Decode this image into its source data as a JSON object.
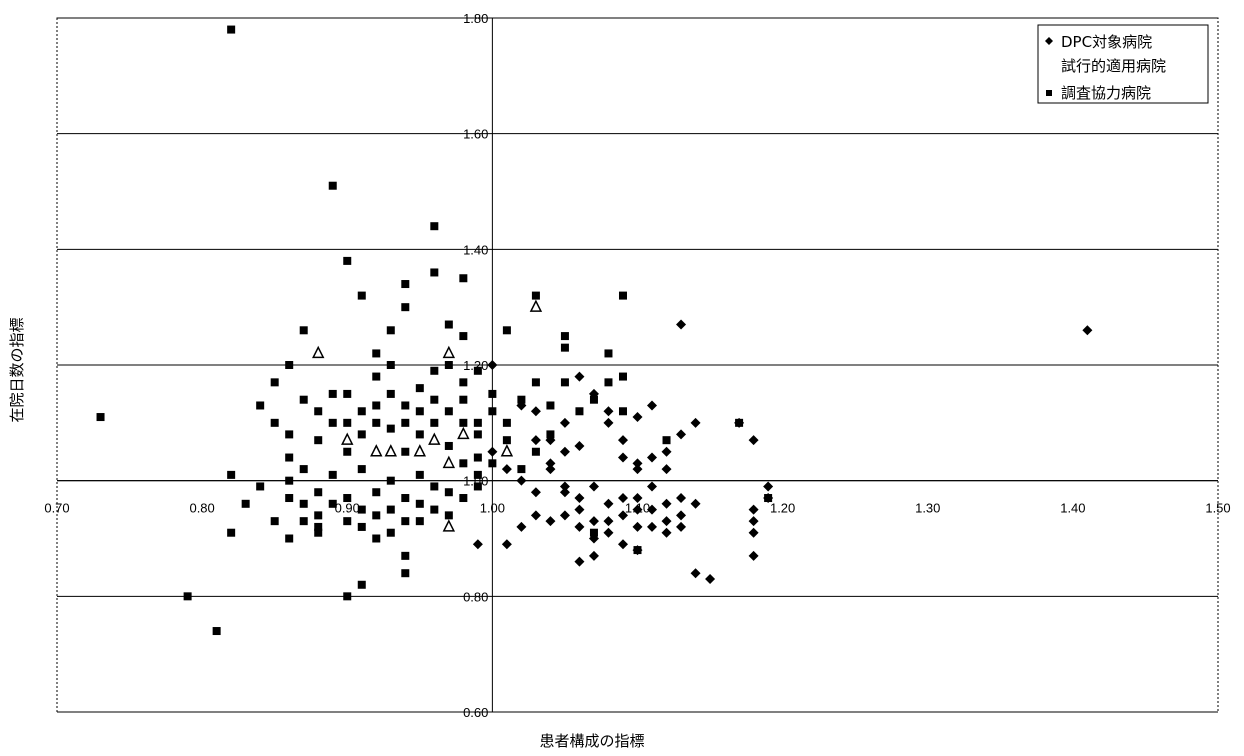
{
  "chart_data": {
    "type": "scatter",
    "xlabel": "患者構成の指標",
    "ylabel": "在院日数の指標",
    "xlim": [
      0.7,
      1.5
    ],
    "ylim": [
      0.6,
      1.8
    ],
    "x_ticks": [
      "0.70",
      "0.80",
      "0.90",
      "1.00",
      "1.10",
      "1.20",
      "1.30",
      "1.40",
      "1.50"
    ],
    "y_ticks": [
      "0.60",
      "0.80",
      "1.00",
      "1.20",
      "1.40",
      "1.60",
      "1.80"
    ],
    "grid": "horizontal",
    "reference_lines": {
      "x": 1.0,
      "y": 1.0
    },
    "legend_position": "top-right",
    "series": [
      {
        "name": "DPC対象病院",
        "marker": "diamond",
        "color": "#000000",
        "points": [
          [
            1.13,
            1.27
          ],
          [
            1.41,
            1.26
          ],
          [
            1.0,
            1.2
          ],
          [
            1.02,
            1.13
          ],
          [
            1.03,
            1.12
          ],
          [
            1.03,
            1.07
          ],
          [
            1.04,
            1.03
          ],
          [
            1.04,
            1.07
          ],
          [
            1.05,
            1.1
          ],
          [
            1.05,
            1.05
          ],
          [
            1.06,
            1.18
          ],
          [
            1.06,
            1.06
          ],
          [
            1.07,
            1.15
          ],
          [
            1.08,
            1.12
          ],
          [
            1.08,
            1.1
          ],
          [
            1.09,
            1.07
          ],
          [
            1.09,
            1.04
          ],
          [
            1.1,
            1.02
          ],
          [
            1.1,
            1.11
          ],
          [
            1.1,
            1.03
          ],
          [
            1.11,
            1.04
          ],
          [
            1.11,
            1.13
          ],
          [
            1.12,
            1.02
          ],
          [
            1.12,
            1.05
          ],
          [
            1.13,
            1.08
          ],
          [
            1.14,
            1.1
          ],
          [
            1.17,
            1.1
          ],
          [
            1.18,
            1.07
          ],
          [
            1.0,
            1.05
          ],
          [
            1.01,
            1.02
          ],
          [
            1.02,
            1.0
          ],
          [
            1.03,
            0.98
          ],
          [
            1.03,
            0.94
          ],
          [
            1.04,
            1.02
          ],
          [
            1.05,
            0.98
          ],
          [
            1.05,
            0.99
          ],
          [
            1.06,
            0.97
          ],
          [
            1.06,
            0.95
          ],
          [
            1.06,
            0.92
          ],
          [
            1.07,
            0.99
          ],
          [
            1.07,
            0.93
          ],
          [
            1.07,
            0.9
          ],
          [
            1.08,
            0.96
          ],
          [
            1.08,
            0.93
          ],
          [
            1.08,
            0.91
          ],
          [
            1.09,
            0.97
          ],
          [
            1.09,
            0.94
          ],
          [
            1.09,
            0.89
          ],
          [
            1.1,
            0.97
          ],
          [
            1.1,
            0.95
          ],
          [
            1.1,
            0.92
          ],
          [
            1.1,
            0.88
          ],
          [
            1.11,
            0.99
          ],
          [
            1.11,
            0.95
          ],
          [
            1.11,
            0.92
          ],
          [
            1.12,
            0.96
          ],
          [
            1.12,
            0.93
          ],
          [
            1.12,
            0.91
          ],
          [
            1.13,
            0.94
          ],
          [
            1.13,
            0.92
          ],
          [
            1.13,
            0.97
          ],
          [
            1.14,
            0.96
          ],
          [
            1.14,
            0.84
          ],
          [
            1.15,
            0.83
          ],
          [
            1.18,
            0.91
          ],
          [
            1.18,
            0.93
          ],
          [
            1.18,
            0.87
          ],
          [
            1.18,
            0.95
          ],
          [
            1.19,
            0.97
          ],
          [
            1.19,
            0.99
          ],
          [
            1.05,
            0.94
          ],
          [
            1.07,
            0.87
          ],
          [
            1.06,
            0.86
          ],
          [
            1.01,
            0.89
          ],
          [
            0.99,
            0.89
          ],
          [
            1.02,
            0.92
          ],
          [
            1.04,
            0.93
          ]
        ]
      },
      {
        "name": "試行的適用病院",
        "marker": "triangle",
        "color": "#000000",
        "points": [
          [
            0.9,
            1.07
          ],
          [
            0.92,
            1.05
          ],
          [
            0.93,
            1.05
          ],
          [
            0.95,
            1.05
          ],
          [
            0.96,
            1.07
          ],
          [
            0.98,
            1.08
          ],
          [
            1.01,
            1.05
          ],
          [
            0.97,
            0.92
          ],
          [
            1.03,
            1.3
          ],
          [
            0.88,
            1.22
          ],
          [
            0.97,
            1.22
          ],
          [
            0.97,
            1.03
          ]
        ]
      },
      {
        "name": "調査協力病院",
        "marker": "square",
        "color": "#000000",
        "points": [
          [
            0.82,
            1.78
          ],
          [
            0.89,
            1.51
          ],
          [
            0.96,
            1.44
          ],
          [
            0.73,
            1.11
          ],
          [
            0.9,
            1.38
          ],
          [
            0.91,
            1.32
          ],
          [
            0.92,
            1.22
          ],
          [
            0.93,
            1.26
          ],
          [
            0.94,
            1.34
          ],
          [
            0.94,
            1.3
          ],
          [
            0.96,
            1.36
          ],
          [
            0.98,
            1.35
          ],
          [
            0.97,
            1.27
          ],
          [
            0.98,
            1.25
          ],
          [
            1.03,
            1.32
          ],
          [
            1.09,
            1.32
          ],
          [
            1.01,
            1.26
          ],
          [
            1.05,
            1.25
          ],
          [
            1.05,
            1.23
          ],
          [
            1.08,
            1.22
          ],
          [
            0.87,
            1.26
          ],
          [
            0.86,
            1.2
          ],
          [
            0.85,
            1.17
          ],
          [
            0.84,
            1.13
          ],
          [
            0.85,
            1.1
          ],
          [
            0.86,
            1.04
          ],
          [
            0.87,
            1.02
          ],
          [
            0.86,
            1.08
          ],
          [
            0.87,
            1.14
          ],
          [
            0.88,
            1.07
          ],
          [
            0.88,
            1.12
          ],
          [
            0.89,
            1.1
          ],
          [
            0.89,
            1.15
          ],
          [
            0.9,
            1.05
          ],
          [
            0.9,
            1.1
          ],
          [
            0.9,
            1.15
          ],
          [
            0.91,
            1.08
          ],
          [
            0.91,
            1.12
          ],
          [
            0.92,
            1.13
          ],
          [
            0.92,
            1.1
          ],
          [
            0.92,
            1.18
          ],
          [
            0.93,
            1.09
          ],
          [
            0.93,
            1.15
          ],
          [
            0.93,
            1.2
          ],
          [
            0.94,
            1.05
          ],
          [
            0.94,
            1.1
          ],
          [
            0.94,
            1.13
          ],
          [
            0.95,
            1.08
          ],
          [
            0.95,
            1.12
          ],
          [
            0.95,
            1.16
          ],
          [
            0.96,
            1.1
          ],
          [
            0.96,
            1.14
          ],
          [
            0.96,
            1.19
          ],
          [
            0.97,
            1.06
          ],
          [
            0.97,
            1.12
          ],
          [
            0.97,
            1.2
          ],
          [
            0.98,
            1.1
          ],
          [
            0.98,
            1.14
          ],
          [
            0.98,
            1.17
          ],
          [
            0.99,
            1.19
          ],
          [
            0.99,
            1.1
          ],
          [
            0.99,
            1.08
          ],
          [
            1.0,
            1.15
          ],
          [
            1.0,
            1.12
          ],
          [
            1.01,
            1.1
          ],
          [
            1.02,
            1.14
          ],
          [
            1.03,
            1.17
          ],
          [
            1.04,
            1.13
          ],
          [
            1.04,
            1.08
          ],
          [
            1.05,
            1.17
          ],
          [
            1.06,
            1.12
          ],
          [
            1.07,
            1.14
          ],
          [
            1.08,
            1.17
          ],
          [
            1.09,
            1.12
          ],
          [
            1.09,
            1.18
          ],
          [
            1.12,
            1.07
          ],
          [
            1.17,
            1.1
          ],
          [
            1.19,
            0.97
          ],
          [
            0.82,
            1.01
          ],
          [
            0.82,
            0.91
          ],
          [
            0.83,
            0.96
          ],
          [
            0.84,
            0.99
          ],
          [
            0.85,
            0.93
          ],
          [
            0.86,
            0.97
          ],
          [
            0.86,
            1.0
          ],
          [
            0.87,
            0.93
          ],
          [
            0.87,
            0.96
          ],
          [
            0.88,
            0.98
          ],
          [
            0.88,
            0.94
          ],
          [
            0.88,
            0.92
          ],
          [
            0.89,
            0.96
          ],
          [
            0.89,
            1.01
          ],
          [
            0.9,
            0.97
          ],
          [
            0.9,
            0.93
          ],
          [
            0.91,
            1.02
          ],
          [
            0.91,
            0.95
          ],
          [
            0.91,
            0.92
          ],
          [
            0.92,
            0.98
          ],
          [
            0.92,
            0.94
          ],
          [
            0.93,
            1.0
          ],
          [
            0.93,
            0.95
          ],
          [
            0.93,
            0.91
          ],
          [
            0.94,
            0.93
          ],
          [
            0.94,
            0.97
          ],
          [
            0.95,
            1.01
          ],
          [
            0.95,
            0.96
          ],
          [
            0.95,
            0.93
          ],
          [
            0.96,
            0.99
          ],
          [
            0.96,
            0.95
          ],
          [
            0.97,
            0.98
          ],
          [
            0.97,
            0.94
          ],
          [
            0.98,
            1.03
          ],
          [
            0.98,
            0.97
          ],
          [
            0.99,
            1.01
          ],
          [
            0.99,
            0.99
          ],
          [
            0.86,
            0.9
          ],
          [
            0.88,
            0.91
          ],
          [
            0.92,
            0.9
          ],
          [
            0.94,
            0.87
          ],
          [
            0.94,
            0.84
          ],
          [
            0.79,
            0.8
          ],
          [
            0.81,
            0.74
          ],
          [
            0.9,
            0.8
          ],
          [
            0.91,
            0.82
          ],
          [
            1.01,
            1.07
          ],
          [
            1.02,
            1.02
          ],
          [
            1.03,
            1.05
          ],
          [
            1.0,
            1.03
          ],
          [
            0.99,
            1.04
          ],
          [
            1.1,
            0.88
          ],
          [
            1.07,
            0.91
          ]
        ]
      }
    ]
  }
}
